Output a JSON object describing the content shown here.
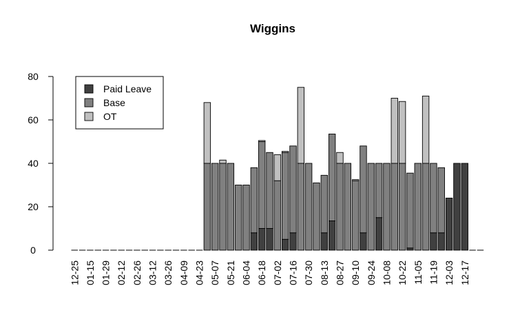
{
  "chart_data": {
    "type": "bar",
    "stacked": true,
    "title": "Wiggins",
    "xlabel": "",
    "ylabel": "",
    "ylim": [
      0,
      80
    ],
    "yticks": [
      0,
      20,
      40,
      60,
      80
    ],
    "x_tick_labels": [
      "12-25",
      "01-15",
      "01-29",
      "02-12",
      "02-26",
      "03-12",
      "03-26",
      "04-09",
      "04-23",
      "05-07",
      "05-21",
      "06-04",
      "06-18",
      "07-02",
      "07-16",
      "07-30",
      "08-13",
      "08-27",
      "09-10",
      "09-24",
      "10-08",
      "10-22",
      "11-05",
      "11-19",
      "12-03",
      "12-17"
    ],
    "legend_position": "top-left",
    "series": [
      {
        "name": "Paid Leave",
        "color": "#404040",
        "values": [
          0,
          0,
          0,
          0,
          0,
          0,
          0,
          0,
          0,
          0,
          0,
          0,
          0,
          0,
          0,
          0,
          0,
          0,
          0,
          0,
          0,
          0,
          0,
          8,
          10,
          10,
          0,
          5,
          8,
          0,
          0,
          0,
          8,
          13.5,
          0,
          0,
          0,
          8,
          0,
          15,
          0,
          0,
          0,
          1,
          0,
          0,
          8,
          8,
          24,
          40,
          40,
          0,
          0
        ]
      },
      {
        "name": "Base",
        "color": "#808080",
        "values": [
          0,
          0,
          0,
          0,
          0,
          0,
          0,
          0,
          0,
          0,
          0,
          0,
          0,
          0,
          0,
          0,
          0,
          40,
          40,
          40,
          40,
          30,
          30,
          30,
          40,
          35,
          32,
          40,
          40,
          40,
          40,
          31,
          26.5,
          40,
          40,
          40,
          32,
          40,
          40,
          25,
          40,
          40,
          40,
          34.5,
          40,
          40,
          32,
          30,
          0,
          0,
          0,
          0,
          0
        ]
      },
      {
        "name": "OT",
        "color": "#c0c0c0",
        "values": [
          0,
          0,
          0,
          0,
          0,
          0,
          0,
          0,
          0,
          0,
          0,
          0,
          0,
          0,
          0,
          0,
          0,
          28,
          0,
          1.5,
          0,
          0,
          0,
          0,
          0.5,
          0,
          12,
          0.5,
          0,
          35,
          0,
          0,
          0,
          0,
          5,
          0,
          0.5,
          0,
          0,
          0,
          0,
          30,
          28.5,
          0,
          0,
          31,
          0,
          0,
          0,
          0,
          0,
          0,
          0
        ]
      }
    ]
  }
}
